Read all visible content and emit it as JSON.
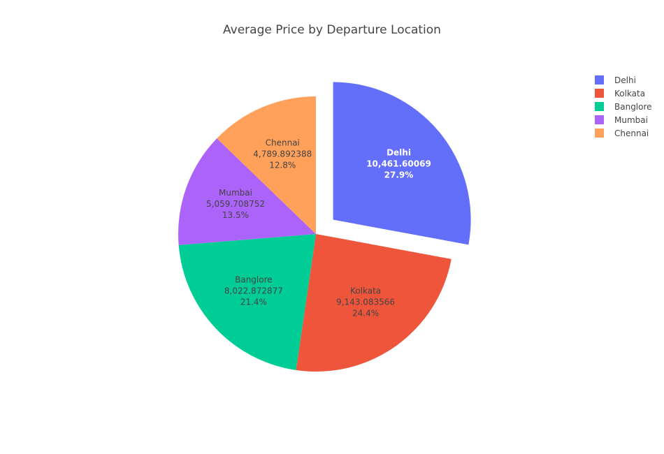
{
  "chart_data": {
    "type": "pie",
    "title": "Average Price by Departure Location",
    "slices": [
      {
        "label": "Delhi",
        "value": 10461.60069,
        "value_text": "10,461.60069",
        "percent_text": "27.9%",
        "color": "#636efa",
        "pulled": true
      },
      {
        "label": "Kolkata",
        "value": 9143.083566,
        "value_text": "9,143.083566",
        "percent_text": "24.4%",
        "color": "#ef553b",
        "pulled": false
      },
      {
        "label": "Banglore",
        "value": 8022.872877,
        "value_text": "8,022.872877",
        "percent_text": "21.4%",
        "color": "#00cc96",
        "pulled": false
      },
      {
        "label": "Mumbai",
        "value": 5059.708752,
        "value_text": "5,059.708752",
        "percent_text": "13.5%",
        "color": "#ab63fa",
        "pulled": false
      },
      {
        "label": "Chennai",
        "value": 4789.892388,
        "value_text": "4,789.892388",
        "percent_text": "12.8%",
        "color": "#ffa15a",
        "pulled": false
      }
    ],
    "legend_position": "top-right",
    "label_color_light": "#ffffff",
    "label_color_dark": "#444444"
  }
}
